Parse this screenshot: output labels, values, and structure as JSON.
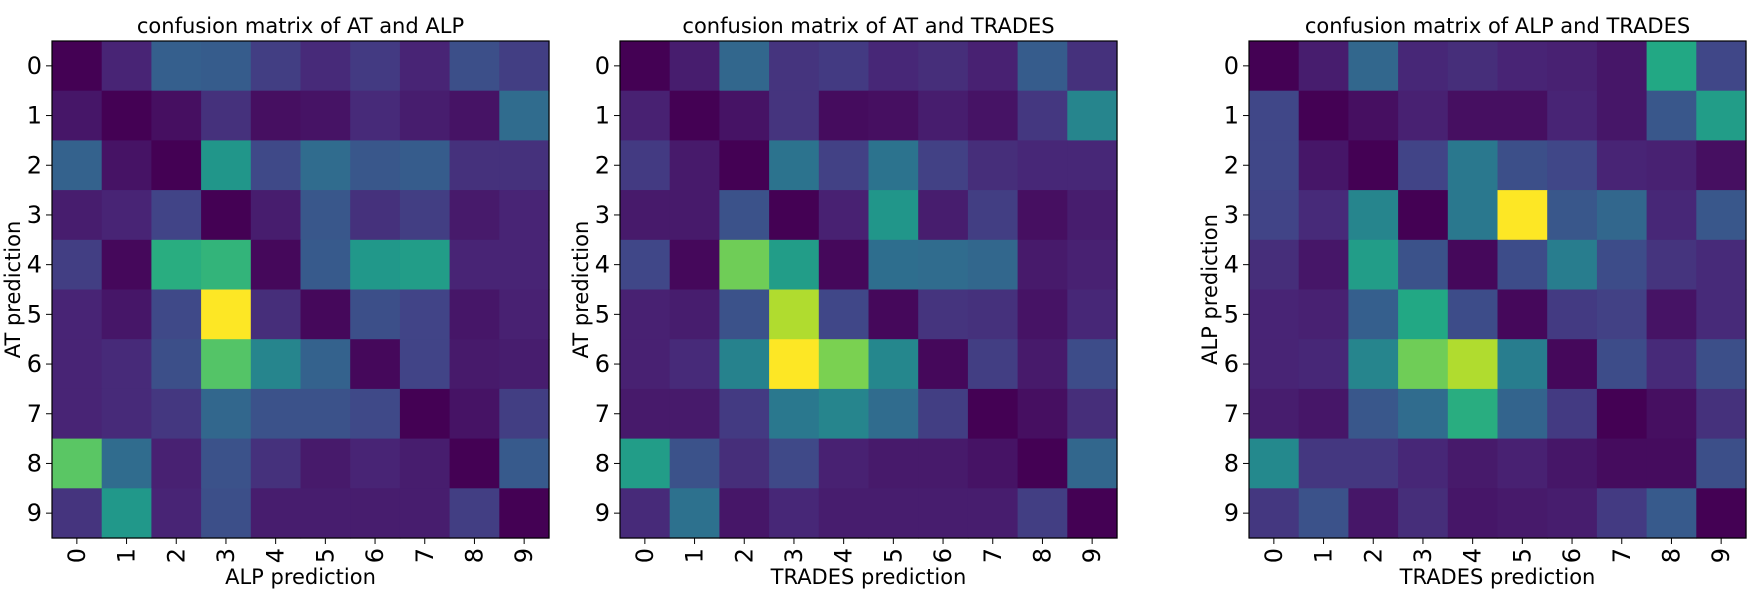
{
  "chart_data": [
    {
      "type": "heatmap",
      "title": "confusion matrix of AT and ALP",
      "xlabel": "ALP prediction",
      "ylabel": "AT prediction",
      "x_categories": [
        "0",
        "1",
        "2",
        "3",
        "4",
        "5",
        "6",
        "7",
        "8",
        "9"
      ],
      "y_categories": [
        "0",
        "1",
        "2",
        "3",
        "4",
        "5",
        "6",
        "7",
        "8",
        "9"
      ],
      "colormap": "viridis",
      "values": [
        [
          0.0,
          0.1,
          0.3,
          0.29,
          0.18,
          0.12,
          0.17,
          0.1,
          0.24,
          0.18
        ],
        [
          0.06,
          0.0,
          0.04,
          0.14,
          0.04,
          0.05,
          0.12,
          0.08,
          0.05,
          0.35
        ],
        [
          0.31,
          0.05,
          0.0,
          0.52,
          0.22,
          0.35,
          0.27,
          0.29,
          0.14,
          0.14
        ],
        [
          0.08,
          0.1,
          0.2,
          0.0,
          0.08,
          0.27,
          0.14,
          0.18,
          0.07,
          0.1
        ],
        [
          0.18,
          0.02,
          0.62,
          0.65,
          0.02,
          0.28,
          0.53,
          0.55,
          0.1,
          0.1
        ],
        [
          0.1,
          0.06,
          0.22,
          1.0,
          0.13,
          0.02,
          0.24,
          0.2,
          0.06,
          0.09
        ],
        [
          0.1,
          0.12,
          0.24,
          0.73,
          0.45,
          0.31,
          0.02,
          0.2,
          0.07,
          0.08
        ],
        [
          0.1,
          0.12,
          0.16,
          0.33,
          0.25,
          0.25,
          0.22,
          0.0,
          0.05,
          0.18
        ],
        [
          0.74,
          0.35,
          0.09,
          0.25,
          0.14,
          0.07,
          0.1,
          0.08,
          0.0,
          0.28
        ],
        [
          0.15,
          0.53,
          0.1,
          0.24,
          0.08,
          0.08,
          0.08,
          0.08,
          0.18,
          0.0
        ]
      ]
    },
    {
      "type": "heatmap",
      "title": "confusion matrix of AT and TRADES",
      "xlabel": "TRADES prediction",
      "ylabel": "AT prediction",
      "x_categories": [
        "0",
        "1",
        "2",
        "3",
        "4",
        "5",
        "6",
        "7",
        "8",
        "9"
      ],
      "y_categories": [
        "0",
        "1",
        "2",
        "3",
        "4",
        "5",
        "6",
        "7",
        "8",
        "9"
      ],
      "colormap": "viridis",
      "values": [
        [
          0.0,
          0.08,
          0.33,
          0.15,
          0.17,
          0.11,
          0.13,
          0.09,
          0.29,
          0.14
        ],
        [
          0.09,
          0.0,
          0.05,
          0.15,
          0.03,
          0.04,
          0.08,
          0.05,
          0.16,
          0.45
        ],
        [
          0.17,
          0.07,
          0.0,
          0.38,
          0.19,
          0.38,
          0.19,
          0.13,
          0.11,
          0.11
        ],
        [
          0.07,
          0.07,
          0.25,
          0.0,
          0.09,
          0.52,
          0.08,
          0.18,
          0.04,
          0.08
        ],
        [
          0.21,
          0.02,
          0.78,
          0.55,
          0.02,
          0.36,
          0.35,
          0.33,
          0.07,
          0.09
        ],
        [
          0.09,
          0.08,
          0.25,
          0.88,
          0.21,
          0.02,
          0.15,
          0.14,
          0.05,
          0.11
        ],
        [
          0.09,
          0.12,
          0.44,
          1.0,
          0.8,
          0.46,
          0.02,
          0.18,
          0.07,
          0.23
        ],
        [
          0.07,
          0.07,
          0.17,
          0.4,
          0.45,
          0.35,
          0.18,
          0.0,
          0.04,
          0.13
        ],
        [
          0.55,
          0.25,
          0.13,
          0.22,
          0.09,
          0.07,
          0.07,
          0.05,
          0.0,
          0.33
        ],
        [
          0.12,
          0.37,
          0.06,
          0.11,
          0.08,
          0.08,
          0.08,
          0.08,
          0.18,
          0.0
        ]
      ]
    },
    {
      "type": "heatmap",
      "title": "confusion matrix of ALP and TRADES",
      "xlabel": "TRADES prediction",
      "ylabel": "ALP prediction",
      "x_categories": [
        "0",
        "1",
        "2",
        "3",
        "4",
        "5",
        "6",
        "7",
        "8",
        "9"
      ],
      "y_categories": [
        "0",
        "1",
        "2",
        "3",
        "4",
        "5",
        "6",
        "7",
        "8",
        "9"
      ],
      "colormap": "viridis",
      "values": [
        [
          0.0,
          0.08,
          0.33,
          0.11,
          0.13,
          0.1,
          0.09,
          0.06,
          0.6,
          0.21
        ],
        [
          0.21,
          0.0,
          0.04,
          0.09,
          0.04,
          0.04,
          0.1,
          0.06,
          0.27,
          0.55
        ],
        [
          0.21,
          0.06,
          0.0,
          0.2,
          0.4,
          0.24,
          0.21,
          0.1,
          0.09,
          0.04
        ],
        [
          0.2,
          0.12,
          0.45,
          0.0,
          0.4,
          1.0,
          0.27,
          0.33,
          0.11,
          0.27
        ],
        [
          0.13,
          0.06,
          0.55,
          0.25,
          0.02,
          0.23,
          0.42,
          0.23,
          0.15,
          0.12
        ],
        [
          0.1,
          0.09,
          0.3,
          0.6,
          0.23,
          0.02,
          0.17,
          0.19,
          0.05,
          0.12
        ],
        [
          0.1,
          0.11,
          0.45,
          0.78,
          0.88,
          0.42,
          0.02,
          0.23,
          0.12,
          0.24
        ],
        [
          0.08,
          0.06,
          0.27,
          0.35,
          0.62,
          0.32,
          0.17,
          0.0,
          0.04,
          0.14
        ],
        [
          0.47,
          0.16,
          0.16,
          0.11,
          0.07,
          0.09,
          0.06,
          0.03,
          0.03,
          0.24
        ],
        [
          0.16,
          0.25,
          0.06,
          0.13,
          0.06,
          0.07,
          0.08,
          0.17,
          0.28,
          0.0
        ]
      ]
    }
  ]
}
